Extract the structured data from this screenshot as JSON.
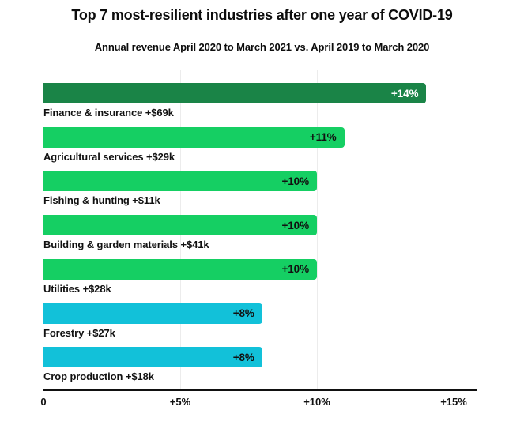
{
  "chart_data": {
    "type": "bar",
    "orientation": "horizontal",
    "title": "Top 7 most-resilient industries after one year of COVID-19",
    "subtitle": "Annual revenue April 2020 to March 2021 vs. April 2019 to March 2020",
    "x_axis": {
      "unit": "percent",
      "range": [
        0,
        16
      ],
      "ticks": [
        {
          "label": "0",
          "value": 0
        },
        {
          "label": "+5%",
          "value": 5
        },
        {
          "label": "+10%",
          "value": 10
        },
        {
          "label": "+15%",
          "value": 15
        }
      ]
    },
    "grid": "vertical-light-gray",
    "legend": "none",
    "rows": [
      {
        "category": "Finance & insurance +$69k",
        "value": 14,
        "value_label": "+14%",
        "bar_color": "#1a8447",
        "value_label_color": "#ffffff"
      },
      {
        "category": "Agricultural services +$29k",
        "value": 11,
        "value_label": "+11%",
        "bar_color": "#15cf63",
        "value_label_color": "#111111"
      },
      {
        "category": "Fishing & hunting +$11k",
        "value": 10,
        "value_label": "+10%",
        "bar_color": "#15cf63",
        "value_label_color": "#111111"
      },
      {
        "category": "Building & garden materials +$41k",
        "value": 10,
        "value_label": "+10%",
        "bar_color": "#15cf63",
        "value_label_color": "#111111"
      },
      {
        "category": "Utilities +$28k",
        "value": 10,
        "value_label": "+10%",
        "bar_color": "#15cf63",
        "value_label_color": "#111111"
      },
      {
        "category": "Forestry +$27k",
        "value": 8,
        "value_label": "+8%",
        "bar_color": "#12c1d9",
        "value_label_color": "#111111"
      },
      {
        "category": "Crop production +$18k",
        "value": 8,
        "value_label": "+8%",
        "bar_color": "#12c1d9",
        "value_label_color": "#111111"
      }
    ],
    "colors": {
      "dark_green": "#1a8447",
      "green": "#15cf63",
      "cyan": "#12c1d9",
      "axis": "#111111",
      "gridline": "#ececec",
      "text": "#111111",
      "background": "#ffffff"
    }
  }
}
